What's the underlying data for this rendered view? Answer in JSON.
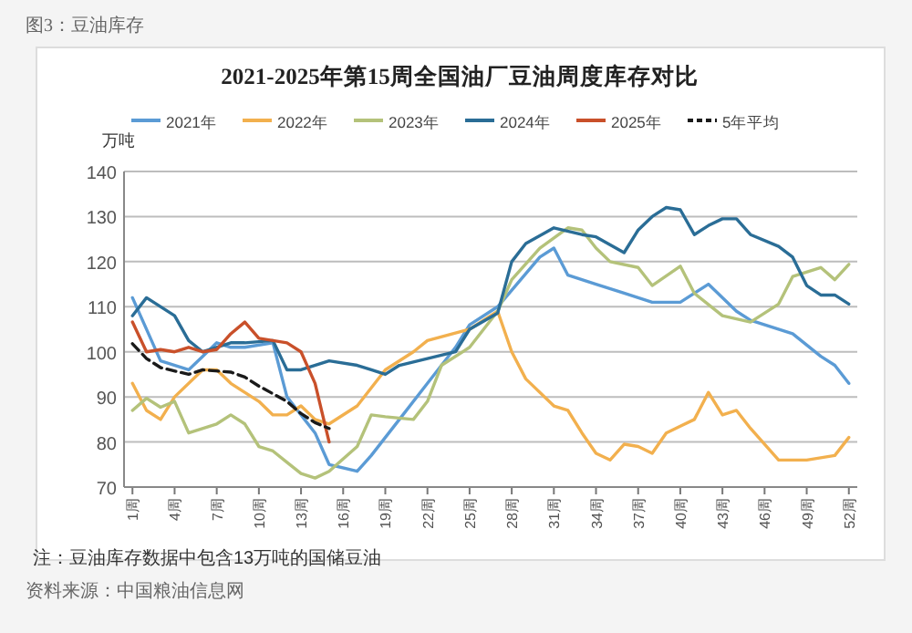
{
  "chart_data": {
    "type": "line",
    "title": "2021-2025年第15周全国油厂豆油周度库存对比",
    "ylabel": "万吨",
    "annotations": [
      "图3：豆油库存",
      "注：豆油库存数据中包含13万吨的国储豆油",
      "资料来源：中国粮油信息网"
    ],
    "xlim": [
      0.4,
      52.6
    ],
    "xticks": [
      {
        "value": 1,
        "label": "1周"
      },
      {
        "value": 4,
        "label": "4周"
      },
      {
        "value": 7,
        "label": "7周"
      },
      {
        "value": 10,
        "label": "10周"
      },
      {
        "value": 13,
        "label": "13周"
      },
      {
        "value": 16,
        "label": "16周"
      },
      {
        "value": 19,
        "label": "19周"
      },
      {
        "value": 22,
        "label": "22周"
      },
      {
        "value": 25,
        "label": "25周"
      },
      {
        "value": 28,
        "label": "28周"
      },
      {
        "value": 31,
        "label": "31周"
      },
      {
        "value": 34,
        "label": "34周"
      },
      {
        "value": 37,
        "label": "37周"
      },
      {
        "value": 40,
        "label": "40周"
      },
      {
        "value": 43,
        "label": "43周"
      },
      {
        "value": 46,
        "label": "46周"
      },
      {
        "value": 49,
        "label": "49周"
      },
      {
        "value": 52,
        "label": "52周"
      }
    ],
    "ylim": [
      70,
      140
    ],
    "yticks": [
      70,
      80,
      90,
      100,
      110,
      120,
      130,
      140
    ],
    "grid": "y",
    "legend": "top",
    "marker": "none",
    "series": [
      {
        "name": "2021年",
        "color": "#5b9bd5",
        "x": [
          1,
          3,
          5,
          6,
          7,
          8,
          9,
          11,
          12,
          14,
          15,
          17,
          18,
          20,
          22,
          24,
          25,
          27,
          30,
          31,
          32,
          34,
          36,
          38,
          40,
          42,
          44,
          45,
          48,
          50,
          51,
          52
        ],
        "values": [
          112,
          98,
          96,
          99,
          102,
          101,
          101,
          102,
          90,
          82,
          75,
          73.5,
          77,
          85,
          93,
          101,
          106,
          110,
          121,
          123,
          117,
          115,
          113,
          111,
          111,
          115,
          109,
          107,
          104,
          99,
          97,
          93
        ]
      },
      {
        "name": "2022年",
        "color": "#f2b04e",
        "x": [
          1,
          2,
          3,
          4,
          6,
          7,
          8,
          10,
          11,
          12,
          13,
          14,
          15,
          17,
          18,
          19,
          21,
          22,
          25,
          27,
          28,
          29,
          31,
          32,
          33,
          34,
          35,
          36,
          37,
          38,
          39,
          40,
          41,
          42,
          43,
          44,
          45,
          47,
          49,
          51,
          52
        ],
        "values": [
          93,
          87,
          85,
          90,
          96,
          96,
          93,
          89,
          86,
          86,
          88,
          85,
          84,
          88,
          92,
          96,
          100,
          102.5,
          105,
          109,
          100,
          94,
          88,
          87,
          82,
          77.5,
          76,
          79.5,
          79,
          77.5,
          82,
          83.5,
          85,
          91,
          86,
          87,
          83,
          76,
          76,
          77,
          81
        ]
      },
      {
        "name": "2023年",
        "color": "#b4c27a",
        "x": [
          1,
          2,
          3,
          4,
          5,
          7,
          8,
          9,
          10,
          11,
          12,
          13,
          14,
          15,
          17,
          18,
          19,
          21,
          22,
          23,
          25,
          27,
          28,
          30,
          32,
          33,
          34,
          35,
          37,
          38,
          40,
          41,
          43,
          45,
          47,
          48,
          50,
          51,
          52
        ],
        "values": [
          87,
          89.7,
          87.7,
          89,
          82,
          84,
          86,
          84,
          79,
          78,
          75.5,
          73,
          72,
          73.5,
          79,
          86,
          85.6,
          85,
          89,
          97,
          101,
          109,
          116,
          123,
          127.5,
          127,
          123,
          120,
          118.7,
          114.7,
          119,
          113,
          108,
          106.6,
          110.6,
          116.7,
          118.7,
          116,
          119.4
        ]
      },
      {
        "name": "2024年",
        "color": "#2a6d96",
        "x": [
          1,
          2,
          4,
          5,
          6,
          8,
          9,
          11,
          12,
          13,
          15,
          17,
          18,
          19,
          20,
          22,
          24,
          25,
          27,
          28,
          29,
          31,
          33,
          34,
          36,
          37,
          38,
          39,
          40,
          41,
          42,
          43,
          44,
          45,
          47,
          48,
          49,
          50,
          51,
          52
        ],
        "values": [
          108,
          112,
          108,
          102.5,
          100,
          102,
          102,
          102.5,
          96,
          96,
          98,
          97,
          96,
          95,
          97,
          98.5,
          100,
          105,
          108.6,
          120,
          124,
          127.5,
          126,
          125.5,
          122,
          127,
          130,
          132,
          131.5,
          126,
          128,
          129.5,
          129.5,
          126,
          123.4,
          121,
          114.7,
          112.6,
          112.6,
          110.6
        ]
      },
      {
        "name": "2025年",
        "color": "#c9502a",
        "x": [
          1,
          2,
          3,
          4,
          5,
          6,
          7,
          8,
          9,
          10,
          11,
          12,
          13,
          14,
          15
        ],
        "values": [
          106.6,
          100,
          100.5,
          100,
          101,
          100,
          100.5,
          104,
          106.6,
          103,
          102.5,
          102,
          100,
          93,
          80
        ]
      },
      {
        "name": "5年平均",
        "color": "#1a1a1a",
        "line_style": "dashed",
        "x": [
          1,
          2,
          3,
          5,
          6,
          8,
          9,
          10,
          12,
          13,
          14,
          15
        ],
        "values": [
          101.8,
          98.5,
          96.5,
          95,
          96,
          95.5,
          94.4,
          92.4,
          89,
          86.3,
          84.3,
          83
        ]
      }
    ]
  }
}
